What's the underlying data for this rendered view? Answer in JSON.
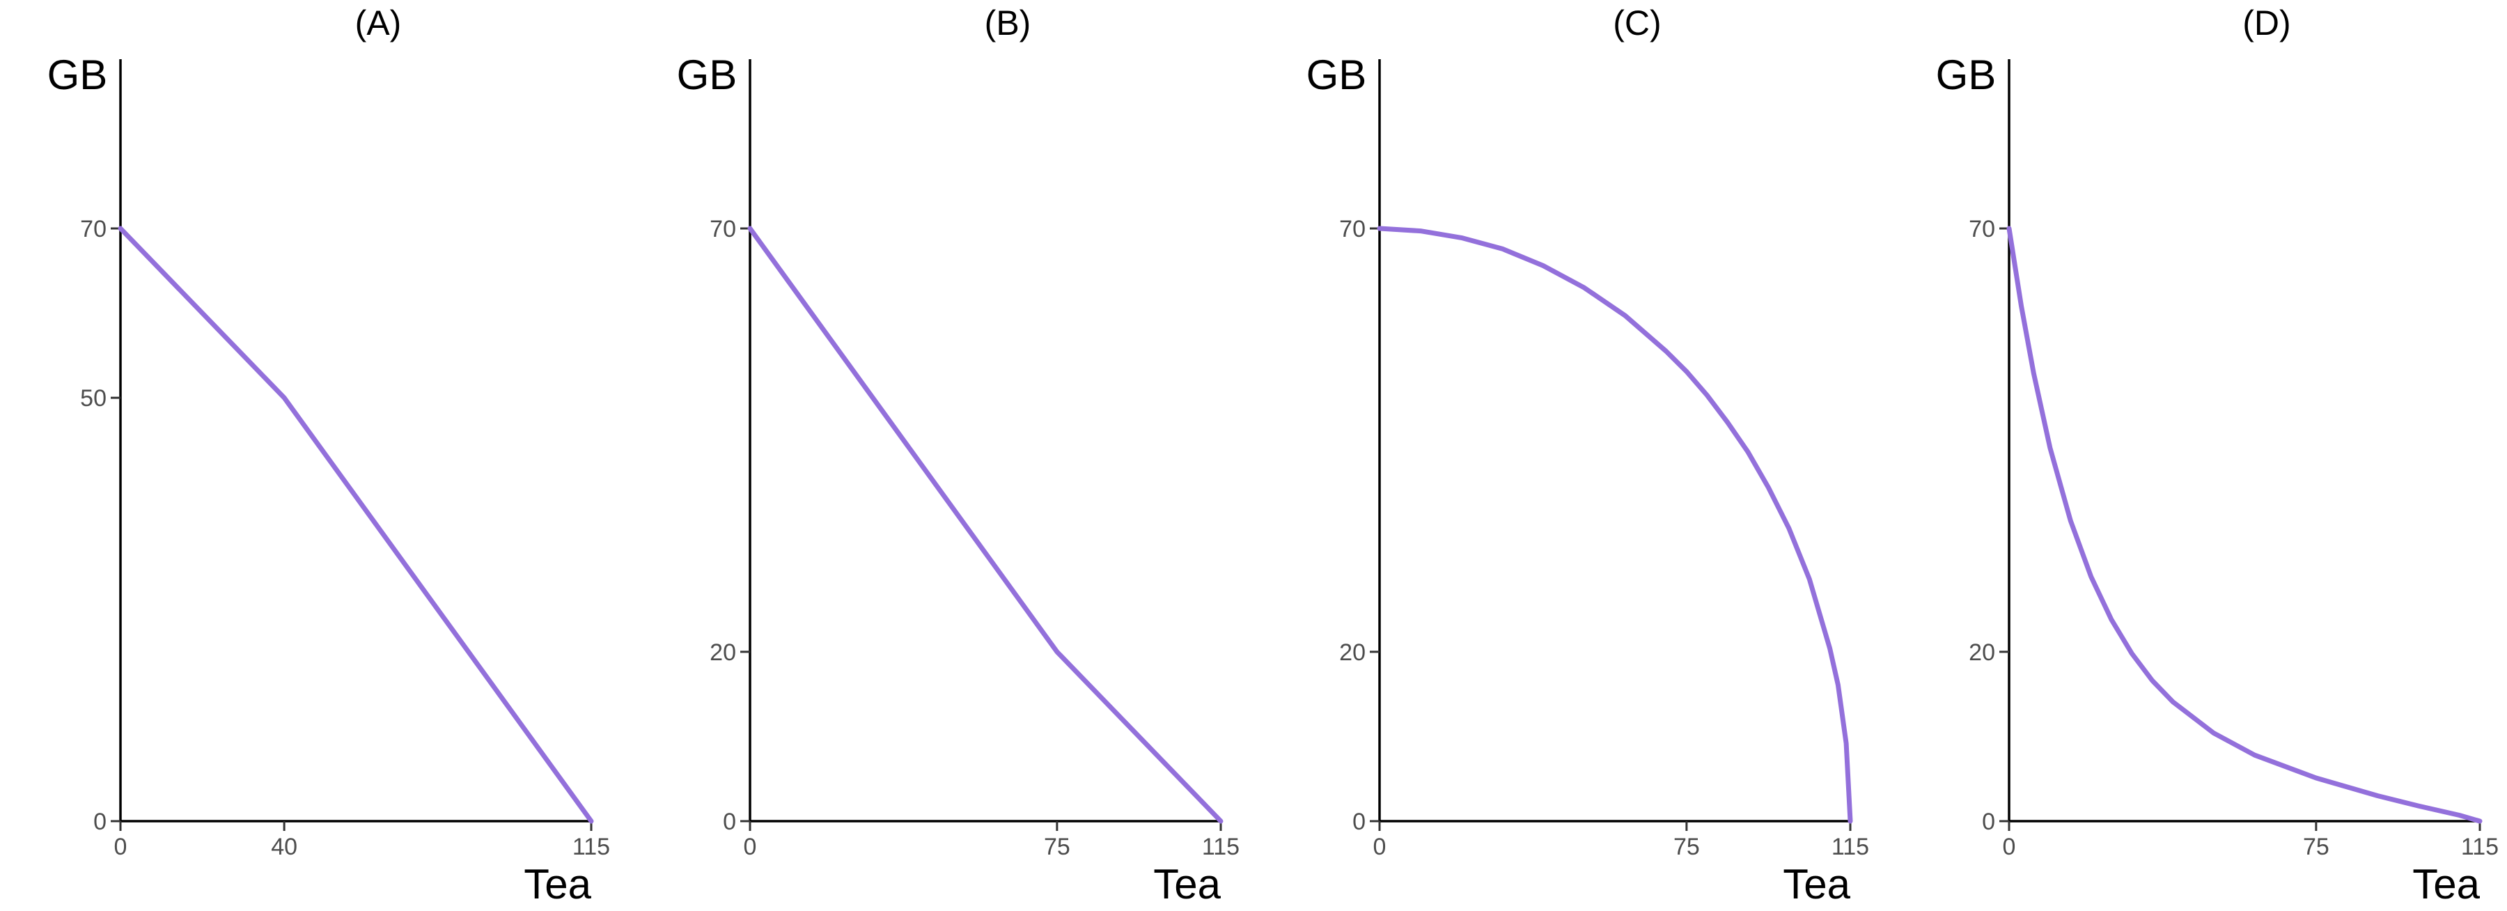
{
  "line_color": "#9370DB",
  "chart_data": [
    {
      "type": "line",
      "title": "(A)",
      "xlabel": "Tea",
      "ylabel": "GB",
      "xlim": [
        0,
        115
      ],
      "ylim": [
        0,
        70
      ],
      "xticks": [
        0,
        40,
        115
      ],
      "yticks": [
        0,
        50,
        70
      ],
      "series": [
        {
          "x": [
            0,
            40,
            115
          ],
          "y": [
            70,
            50,
            0
          ]
        }
      ]
    },
    {
      "type": "line",
      "title": "(B)",
      "xlabel": "Tea",
      "ylabel": "GB",
      "xlim": [
        0,
        115
      ],
      "ylim": [
        0,
        70
      ],
      "xticks": [
        0,
        75,
        115
      ],
      "yticks": [
        0,
        20,
        70
      ],
      "series": [
        {
          "x": [
            0,
            75,
            115
          ],
          "y": [
            70,
            20,
            0
          ]
        }
      ]
    },
    {
      "type": "line",
      "title": "(C)",
      "xlabel": "Tea",
      "ylabel": "GB",
      "xlim": [
        0,
        115
      ],
      "ylim": [
        0,
        70
      ],
      "xticks": [
        0,
        75,
        115
      ],
      "yticks": [
        0,
        20,
        70
      ],
      "series": [
        {
          "x": [
            0,
            10,
            20,
            30,
            40,
            50,
            60,
            70,
            75,
            80,
            85,
            90,
            95,
            100,
            105,
            110,
            112,
            114,
            115
          ],
          "y": [
            70,
            69.7,
            68.9,
            67.6,
            65.6,
            63.0,
            59.7,
            55.5,
            53.1,
            50.3,
            47.1,
            43.6,
            39.4,
            34.6,
            28.6,
            20.4,
            16.1,
            9.2,
            0
          ]
        }
      ]
    },
    {
      "type": "line",
      "title": "(D)",
      "xlabel": "Tea",
      "ylabel": "GB",
      "xlim": [
        0,
        115
      ],
      "ylim": [
        0,
        70
      ],
      "xticks": [
        0,
        75,
        115
      ],
      "yticks": [
        0,
        20,
        70
      ],
      "series": [
        {
          "x": [
            0,
            3,
            6,
            10,
            15,
            20,
            25,
            30,
            35,
            40,
            50,
            60,
            75,
            90,
            100,
            110,
            115
          ],
          "y": [
            70,
            60.8,
            52.9,
            44.1,
            35.5,
            28.9,
            23.8,
            19.8,
            16.6,
            14.1,
            10.4,
            7.8,
            5.1,
            3.0,
            1.8,
            0.7,
            0
          ]
        }
      ]
    }
  ]
}
